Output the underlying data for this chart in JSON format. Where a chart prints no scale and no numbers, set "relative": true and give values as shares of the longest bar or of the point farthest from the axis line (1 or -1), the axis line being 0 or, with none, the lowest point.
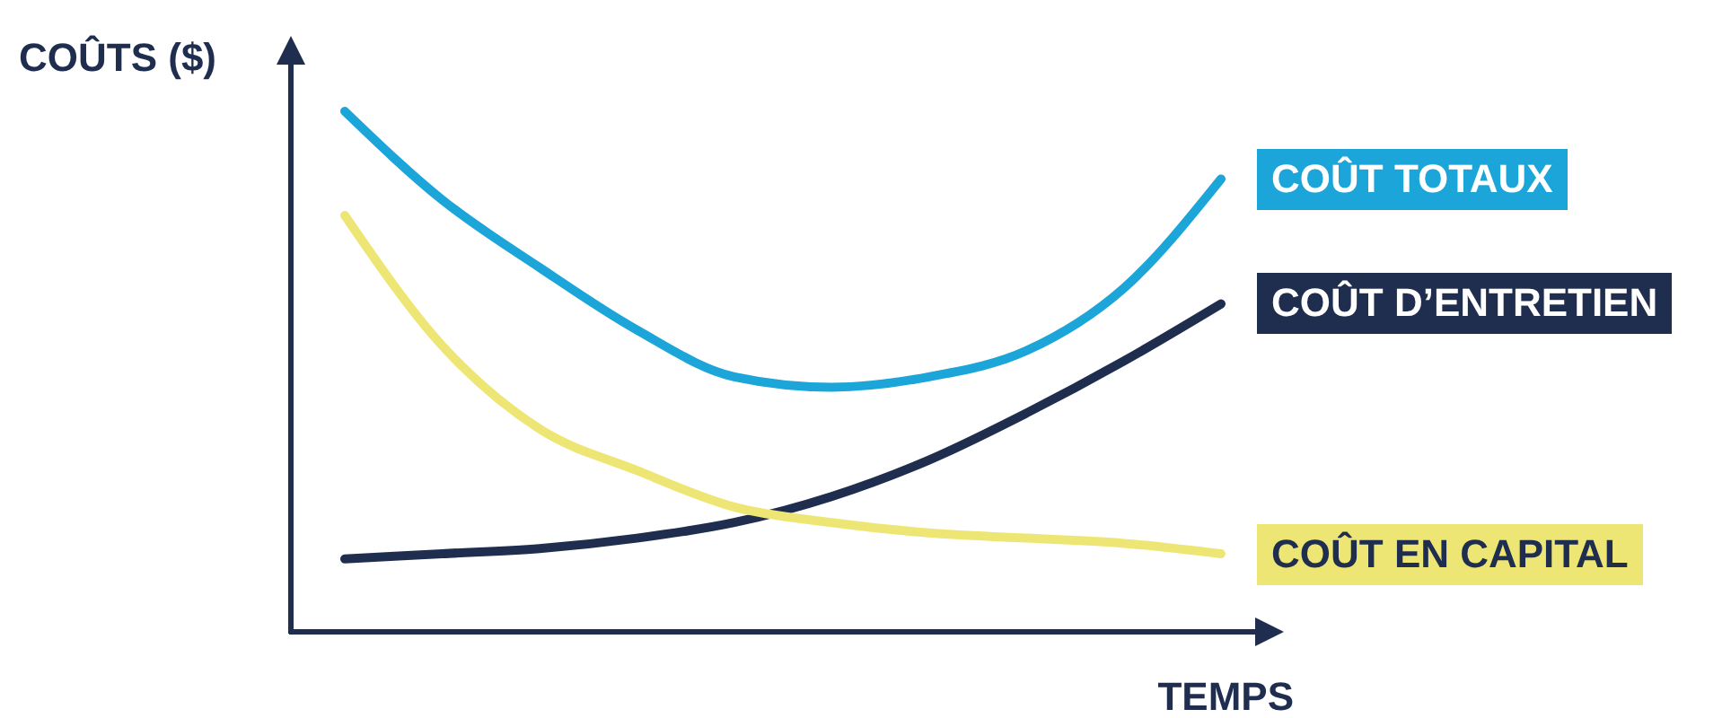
{
  "chart_data": {
    "type": "line",
    "relative": true,
    "xlabel": "TEMPS",
    "ylabel": "COÛTS ($)",
    "categories": [
      null,
      null,
      null,
      null,
      null,
      null,
      null,
      null,
      null,
      null
    ],
    "series": [
      {
        "name": "COÛT TOTAUX",
        "color": "#1ba5d8",
        "values": [
          1,
          0.83,
          0.7,
          0.58,
          0.49,
          0.47,
          0.49,
          0.54,
          0.66,
          0.87
        ]
      },
      {
        "name": "COÛT D’ENTRETIEN",
        "color": "#1f2d4e",
        "values": [
          0.14,
          0.15,
          0.16,
          0.18,
          0.21,
          0.26,
          0.33,
          0.42,
          0.52,
          0.63
        ]
      },
      {
        "name": "COÛT EN CAPITAL",
        "color": "#eee674",
        "values": [
          0.8,
          0.55,
          0.39,
          0.31,
          0.24,
          0.21,
          0.19,
          0.18,
          0.17,
          0.15
        ]
      }
    ],
    "marker": "none",
    "line_style": "solid"
  }
}
